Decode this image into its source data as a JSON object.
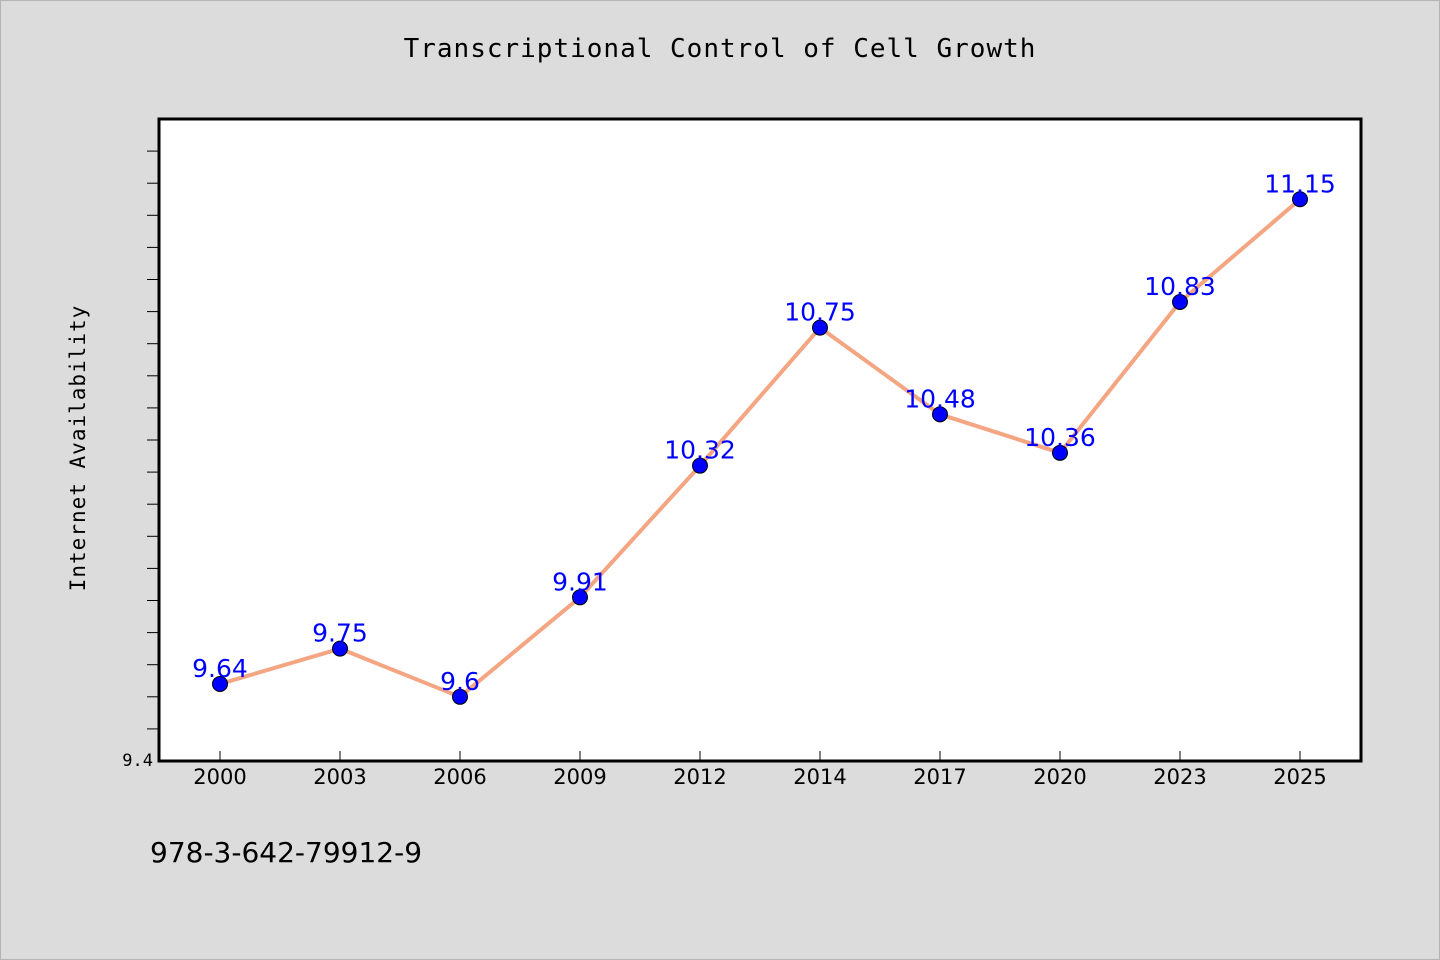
{
  "page": {
    "isbn": "978-3-642-79912-9"
  },
  "chart_data": {
    "type": "line",
    "title": "Transcriptional Control of Cell Growth",
    "xlabel": "",
    "ylabel": "Internet Availability",
    "categories": [
      "2000",
      "2003",
      "2006",
      "2009",
      "2012",
      "2014",
      "2017",
      "2020",
      "2023",
      "2025"
    ],
    "series": [
      {
        "values": [
          9.64,
          9.75,
          9.6,
          9.91,
          10.32,
          10.75,
          10.48,
          10.36,
          10.83,
          11.15
        ],
        "line_color": "#f4a582",
        "marker_color": "#0000ff"
      }
    ],
    "y_tick_labels": [
      "9.4"
    ],
    "y_minor_tick_step": 0.1,
    "ylim": [
      9.4,
      11.4
    ],
    "grid": false,
    "legend": "none",
    "data_labels": true
  }
}
